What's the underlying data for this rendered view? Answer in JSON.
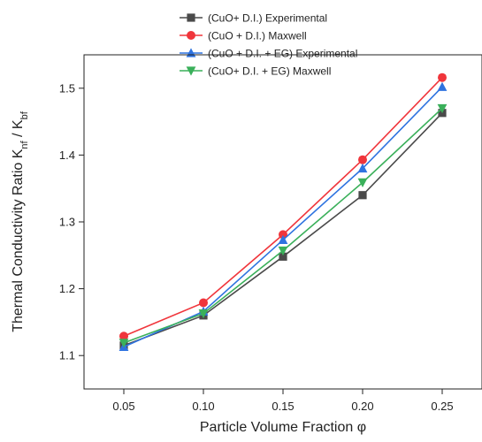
{
  "chart_data": {
    "type": "line",
    "xlabel": "Particle Volume Fraction φ",
    "ylabel": "Thermal Conductivity Ratio K",
    "ylabel_sub1": "nf",
    "ylabel_mid": " / K",
    "ylabel_sub2": "bf",
    "xlim": [
      0.025,
      0.275
    ],
    "ylim": [
      1.05,
      1.55
    ],
    "xticks": [
      0.05,
      0.1,
      0.15,
      0.2,
      0.25
    ],
    "xtick_labels": [
      "0.05",
      "0.10",
      "0.15",
      "0.20",
      "0.25"
    ],
    "yticks": [
      1.1,
      1.2,
      1.3,
      1.4,
      1.5
    ],
    "ytick_labels": [
      "1.1",
      "1.2",
      "1.3",
      "1.4",
      "1.5"
    ],
    "grid": false,
    "legend_position": "top-center",
    "x": [
      0.05,
      0.1,
      0.15,
      0.2,
      0.25
    ],
    "series": [
      {
        "name": "(CuO+ D.I.) Experimental",
        "marker": "square",
        "color": "#4a4a4a",
        "values": [
          1.115,
          1.16,
          1.248,
          1.34,
          1.463
        ]
      },
      {
        "name": "(CuO + D.I.) Maxwell",
        "marker": "circle",
        "color": "#f0353b",
        "values": [
          1.129,
          1.179,
          1.281,
          1.393,
          1.516
        ]
      },
      {
        "name": "(CuO + D.I. + EG) Experimental",
        "marker": "triangle-up",
        "color": "#2e73e0",
        "values": [
          1.113,
          1.166,
          1.273,
          1.38,
          1.502
        ]
      },
      {
        "name": "(CuO+ D.I. + EG) Maxwell",
        "marker": "triangle-down",
        "color": "#3ab05a",
        "values": [
          1.119,
          1.163,
          1.257,
          1.359,
          1.47
        ]
      }
    ]
  }
}
